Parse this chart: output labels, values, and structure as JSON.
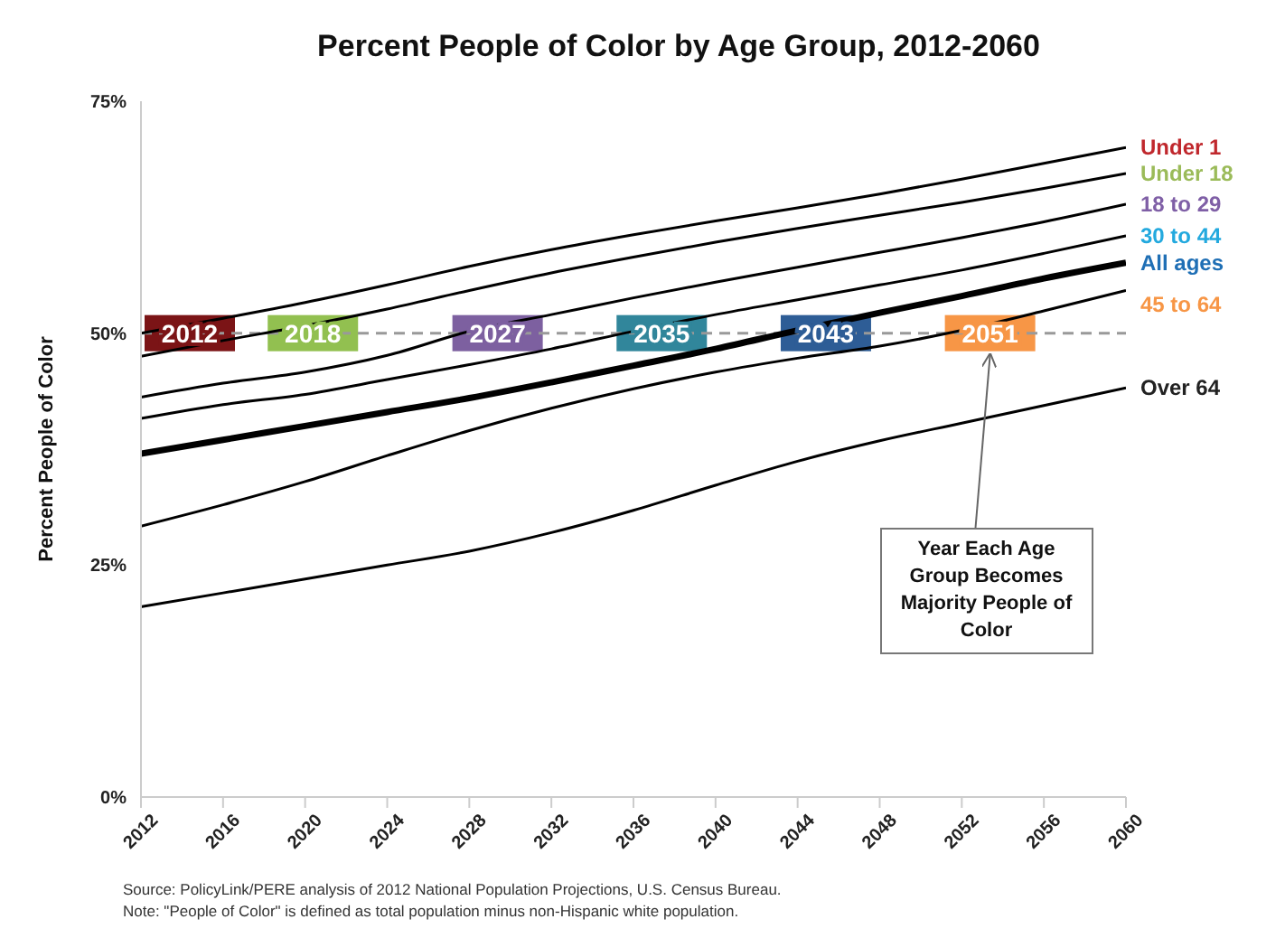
{
  "chart_data": {
    "type": "line",
    "title": "Percent People of Color by Age Group, 2012-2060",
    "ylabel": "Percent People of Color",
    "x": [
      2012,
      2016,
      2020,
      2024,
      2028,
      2032,
      2036,
      2040,
      2044,
      2048,
      2052,
      2056,
      2060
    ],
    "xlim": [
      2012,
      2060
    ],
    "xticks": [
      2012,
      2016,
      2020,
      2024,
      2028,
      2032,
      2036,
      2040,
      2044,
      2048,
      2052,
      2056,
      2060
    ],
    "ylim": [
      0,
      75
    ],
    "yticks": [
      {
        "value": 0,
        "label": "0%"
      },
      {
        "value": 25,
        "label": "25%"
      },
      {
        "value": 50,
        "label": "50%"
      },
      {
        "value": 75,
        "label": "75%"
      }
    ],
    "series": [
      {
        "name": "Under 1",
        "color": "#000000",
        "values": [
          50,
          51.6,
          53.3,
          55.2,
          57.2,
          59,
          60.6,
          62.1,
          63.5,
          65,
          66.6,
          68.3,
          70
        ]
      },
      {
        "name": "Under 18",
        "color": "#000000",
        "values": [
          47.5,
          49.2,
          50.8,
          52.6,
          54.6,
          56.5,
          58.2,
          59.8,
          61.3,
          62.7,
          64.1,
          65.6,
          67.2
        ]
      },
      {
        "name": "18 to 29",
        "color": "#000000",
        "values": [
          43.1,
          44.6,
          45.8,
          47.6,
          50.2,
          52,
          53.8,
          55.5,
          57.1,
          58.7,
          60.3,
          62,
          63.9
        ]
      },
      {
        "name": "30 to 44",
        "color": "#000000",
        "values": [
          40.8,
          42.3,
          43.4,
          45,
          46.6,
          48.3,
          50.2,
          52,
          53.6,
          55.2,
          56.8,
          58.6,
          60.5
        ]
      },
      {
        "name": "All ages",
        "color": "#000000",
        "values": [
          37,
          38.5,
          40,
          41.5,
          43,
          44.7,
          46.5,
          48.3,
          50.3,
          52.2,
          54,
          55.9,
          57.6
        ]
      },
      {
        "name": "45 to 64",
        "color": "#000000",
        "values": [
          29.2,
          31.5,
          34,
          36.8,
          39.5,
          41.9,
          44,
          45.8,
          47.3,
          48.6,
          50.3,
          52.4,
          54.6
        ]
      },
      {
        "name": "Over 64",
        "color": "#000000",
        "values": [
          20.5,
          22,
          23.5,
          25,
          26.5,
          28.5,
          30.9,
          33.6,
          36.2,
          38.4,
          40.3,
          42.2,
          44.1
        ]
      }
    ],
    "ref_lines": [
      {
        "axis": "y",
        "value": 50,
        "color": "#999999",
        "line_style": "dashed"
      }
    ],
    "annotations": [
      {
        "text": "2012",
        "x": 2012,
        "y": 50
      },
      {
        "text": "2018",
        "x": 2018,
        "y": 50
      },
      {
        "text": "2027",
        "x": 2027,
        "y": 50
      },
      {
        "text": "2035",
        "x": 2035,
        "y": 50
      },
      {
        "text": "2043",
        "x": 2043,
        "y": 50
      },
      {
        "text": "2051",
        "x": 2051,
        "y": 50
      },
      "Year Each Age Group Becomes Majority People of Color",
      "Source: PolicyLink/PERE analysis of 2012 National Population Projections, U.S. Census Bureau.",
      "Note: \"People of Color\" is defined as total population minus non-Hispanic white population."
    ],
    "grid": false,
    "legend": false
  }
}
